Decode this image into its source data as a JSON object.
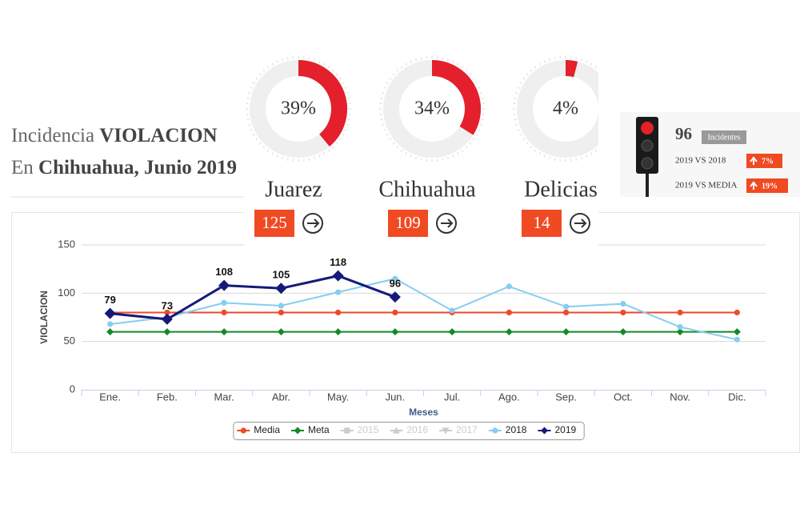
{
  "header": {
    "line1_prefix": "Incidencia",
    "line1_bold": "VIOLACION",
    "line2_prefix": "En",
    "line2_bold": "Chihuahua, Junio 2019"
  },
  "summary": {
    "count": 96,
    "count_label": "Incidentes",
    "rows": [
      {
        "label": "2019 VS 2018",
        "change": "7%"
      },
      {
        "label": "2019 VS MEDIA",
        "change": "19%"
      }
    ]
  },
  "chart_data": [
    {
      "type": "donut",
      "title": "Juarez",
      "values": [
        39
      ],
      "value_labels": [
        "39%"
      ],
      "count": 125,
      "color": "#e3202b"
    },
    {
      "type": "donut",
      "title": "Chihuahua",
      "values": [
        34
      ],
      "value_labels": [
        "34%"
      ],
      "count": 109,
      "color": "#e3202b"
    },
    {
      "type": "donut",
      "title": "Delicias",
      "values": [
        4
      ],
      "value_labels": [
        "4%"
      ],
      "count": 14,
      "color": "#e3202b"
    },
    {
      "type": "line",
      "x_label": "Meses",
      "y_label": "VIOLACION",
      "categories": [
        "Ene.",
        "Feb.",
        "Mar.",
        "Abr.",
        "May.",
        "Jun.",
        "Jul.",
        "Ago.",
        "Sep.",
        "Oct.",
        "Nov.",
        "Dic."
      ],
      "ylim": [
        0,
        150
      ],
      "yticks": [
        0,
        50,
        100,
        150
      ],
      "grid": true,
      "legend": "bottom",
      "series": [
        {
          "name": "Media",
          "color": "#ee4a2c",
          "marker": "circle",
          "visible": true,
          "values": [
            80,
            80,
            80,
            80,
            80,
            80,
            80,
            80,
            80,
            80,
            80,
            80
          ]
        },
        {
          "name": "Meta",
          "color": "#15892a",
          "marker": "diamond",
          "visible": true,
          "values": [
            60,
            60,
            60,
            60,
            60,
            60,
            60,
            60,
            60,
            60,
            60,
            60
          ]
        },
        {
          "name": "2015",
          "color": "#cccccc",
          "marker": "square",
          "visible": false,
          "values": [
            null,
            null,
            null,
            null,
            null,
            null,
            null,
            null,
            null,
            null,
            null,
            null
          ]
        },
        {
          "name": "2016",
          "color": "#cccccc",
          "marker": "triangle",
          "visible": false,
          "values": [
            null,
            null,
            null,
            null,
            null,
            null,
            null,
            null,
            null,
            null,
            null,
            null
          ]
        },
        {
          "name": "2017",
          "color": "#cccccc",
          "marker": "triangle-down",
          "visible": false,
          "values": [
            null,
            null,
            null,
            null,
            null,
            null,
            null,
            null,
            null,
            null,
            null,
            null
          ]
        },
        {
          "name": "2018",
          "color": "#86cdf0",
          "marker": "circle",
          "visible": true,
          "values": [
            68,
            75,
            90,
            87,
            101,
            115,
            82,
            107,
            86,
            89,
            65,
            52
          ]
        },
        {
          "name": "2019",
          "color": "#151a7a",
          "marker": "diamond",
          "visible": true,
          "data_labels": true,
          "values": [
            79,
            73,
            108,
            105,
            118,
            96,
            null,
            null,
            null,
            null,
            null,
            null
          ]
        }
      ]
    }
  ]
}
